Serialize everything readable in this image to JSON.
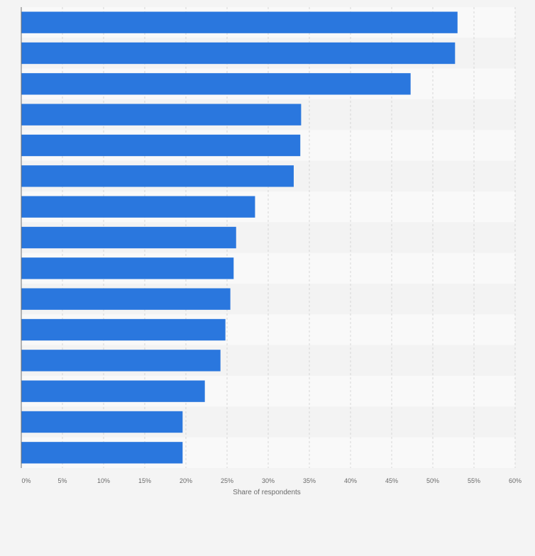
{
  "chart_data": {
    "type": "bar",
    "orientation": "horizontal",
    "title": "",
    "categories": [
      "",
      "",
      "",
      "",
      "",
      "",
      "",
      "",
      "",
      "",
      "",
      "",
      "",
      "",
      ""
    ],
    "values": [
      53.0,
      52.7,
      47.3,
      34.0,
      33.9,
      33.1,
      28.4,
      26.1,
      25.8,
      25.4,
      24.8,
      24.2,
      22.3,
      19.6,
      19.6
    ],
    "xlabel": "Share of respondents",
    "ylabel": "",
    "xlim": [
      0,
      60
    ],
    "tick_step": 5,
    "tick_labels": [
      "0%",
      "5%",
      "10%",
      "15%",
      "20%",
      "25%",
      "30%",
      "35%",
      "40%",
      "45%",
      "50%",
      "55%",
      "60%"
    ],
    "grid": true,
    "bar_color": "#2a77de",
    "band_colors": [
      "#f9f9f9",
      "#f3f3f3"
    ],
    "background": "#f4f4f4"
  }
}
